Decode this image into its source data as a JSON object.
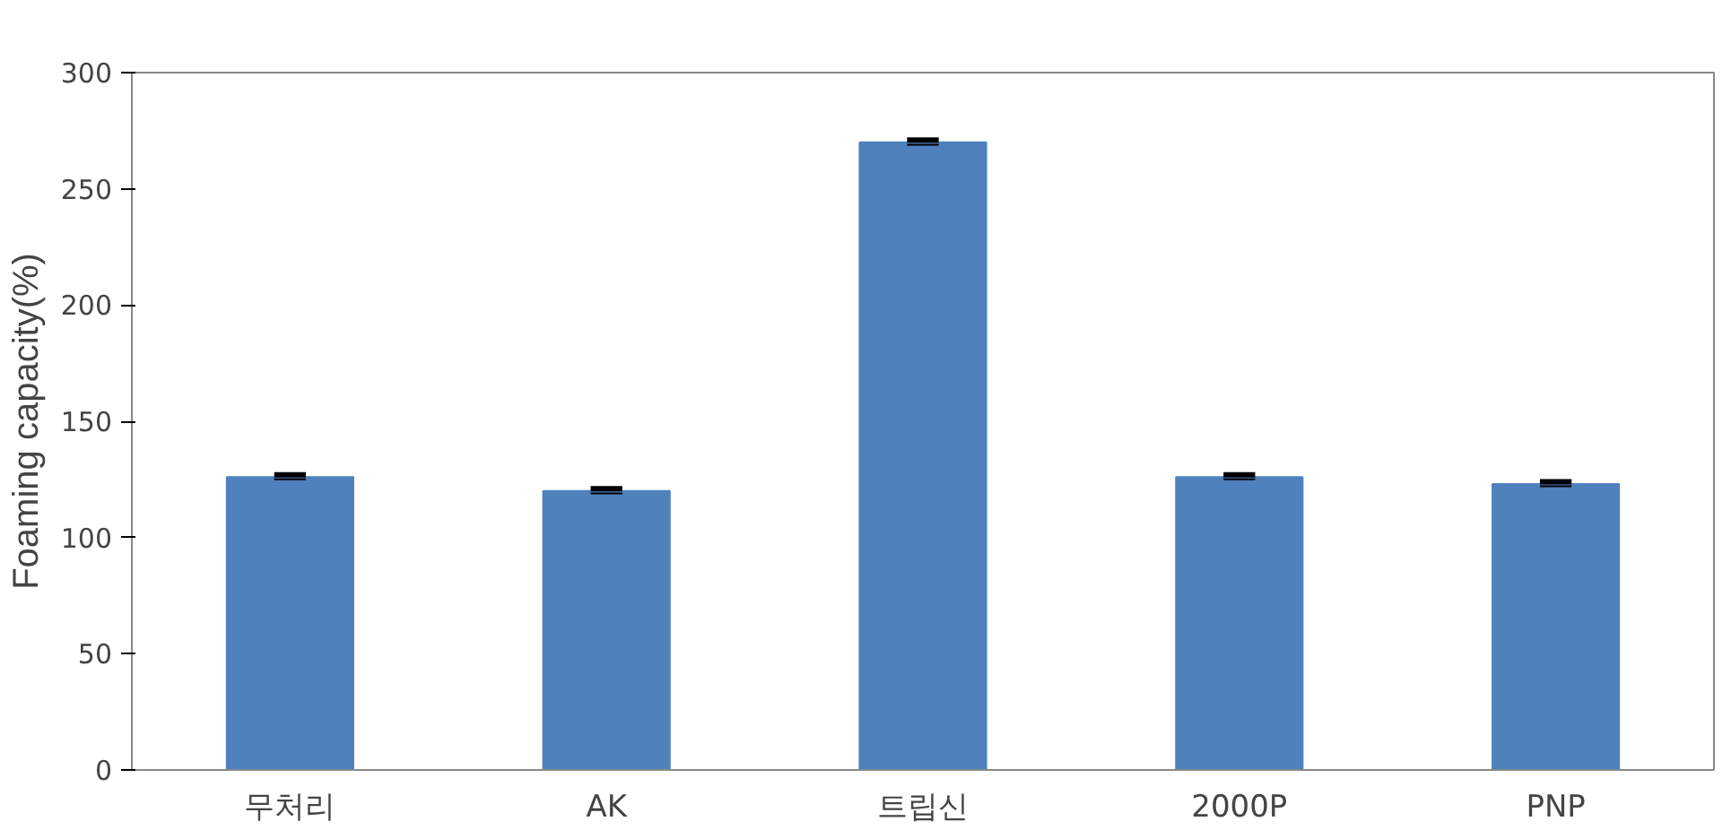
{
  "chart_data": {
    "type": "bar",
    "ylabel": "Foaming capacity(%)",
    "categories": [
      "무처리",
      "AK",
      "트립신",
      "2000P",
      "PNP"
    ],
    "values": [
      126,
      120,
      270,
      126,
      123
    ],
    "errors": [
      1,
      1,
      1,
      1,
      1
    ],
    "color": "#4f81bd",
    "ylim": [
      0,
      300
    ],
    "yticks": [
      0,
      50,
      100,
      150,
      200,
      250,
      300
    ],
    "grid": false
  }
}
